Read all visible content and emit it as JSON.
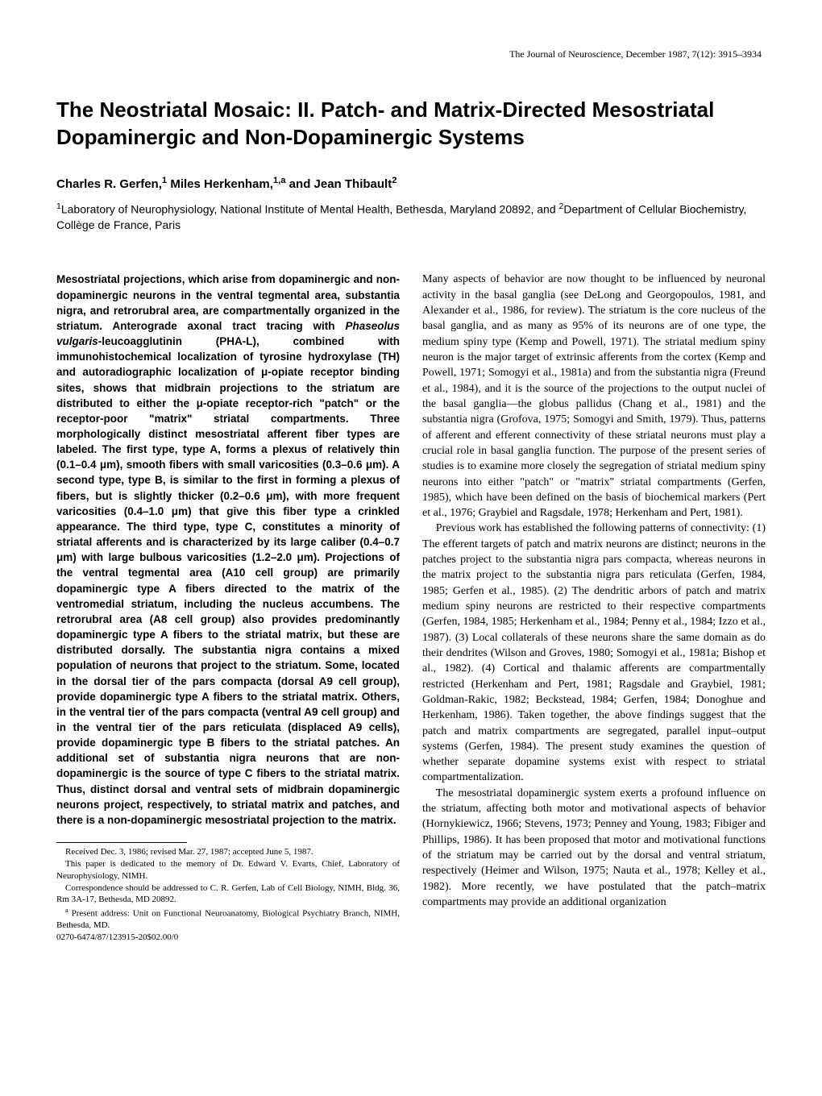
{
  "running_head": "The Journal of Neuroscience, December 1987, 7(12): 3915–3934",
  "title": "The Neostriatal Mosaic: II. Patch- and Matrix-Directed Mesostriatal Dopaminergic and Non-Dopaminergic Systems",
  "authors_html": "Charles R. Gerfen,<sup>1</sup> Miles Herkenham,<sup>1,a</sup> and Jean Thibault<sup>2</sup>",
  "affiliations_html": "<sup>1</sup>Laboratory of Neurophysiology, National Institute of Mental Health, Bethesda, Maryland 20892, and <sup>2</sup>Department of Cellular Biochemistry, Collège de France, Paris",
  "abstract_html": "Mesostriatal projections, which arise from dopaminergic and non-dopaminergic neurons in the ventral tegmental area, substantia nigra, and retrorubral area, are compartmentally organized in the striatum. Anterograde axonal tract tracing with <span class=\"ital\">Phaseolus vulgaris</span>-leucoagglutinin (PHA-L), combined with immunohistochemical localization of tyrosine hydroxylase (TH) and autoradiographic localization of μ-opiate receptor binding sites, shows that midbrain projections to the striatum are distributed to either the μ-opiate receptor-rich \"patch\" or the receptor-poor \"matrix\" striatal compartments. Three morphologically distinct mesostriatal afferent fiber types are labeled. The first type, type A, forms a plexus of relatively thin (0.1–0.4 μm), smooth fibers with small varicosities (0.3–0.6 μm). A second type, type B, is similar to the first in forming a plexus of fibers, but is slightly thicker (0.2–0.6 μm), with more frequent varicosities (0.4–1.0 μm) that give this fiber type a crinkled appearance. The third type, type C, constitutes a minority of striatal afferents and is characterized by its large caliber (0.4–0.7 μm) with large bulbous varicosities (1.2–2.0 μm). Projections of the ventral tegmental area (A10 cell group) are primarily dopaminergic type A fibers directed to the matrix of the ventromedial striatum, including the nucleus accumbens. The retrorubral area (A8 cell group) also provides predominantly dopaminergic type A fibers to the striatal matrix, but these are distributed dorsally. The substantia nigra contains a mixed population of neurons that project to the striatum. Some, located in the dorsal tier of the pars compacta (dorsal A9 cell group), provide dopaminergic type A fibers to the striatal matrix. Others, in the ventral tier of the pars compacta (ventral A9 cell group) and in the ventral tier of the pars reticulata (displaced A9 cells), provide dopaminergic type B fibers to the striatal patches. An additional set of substantia nigra neurons that are non-dopaminergic is the source of type C fibers to the striatal matrix. Thus, distinct dorsal and ventral sets of midbrain dopaminergic neurons project, respectively, to striatal matrix and patches, and there is a non-dopaminergic mesostriatal projection to the matrix.",
  "body_p1": "Many aspects of behavior are now thought to be influenced by neuronal activity in the basal ganglia (see DeLong and Georgopoulos, 1981, and Alexander et al., 1986, for review). The striatum is the core nucleus of the basal ganglia, and as many as 95% of its neurons are of one type, the medium spiny type (Kemp and Powell, 1971). The striatal medium spiny neuron is the major target of extrinsic afferents from the cortex (Kemp and Powell, 1971; Somogyi et al., 1981a) and from the substantia nigra (Freund et al., 1984), and it is the source of the projections to the output nuclei of the basal ganglia—the globus pallidus (Chang et al., 1981) and the substantia nigra (Grofova, 1975; Somogyi and Smith, 1979). Thus, patterns of afferent and efferent connectivity of these striatal neurons must play a crucial role in basal ganglia function. The purpose of the present series of studies is to examine more closely the segregation of striatal medium spiny neurons into either \"patch\" or \"matrix\" striatal compartments (Gerfen, 1985), which have been defined on the basis of biochemical markers (Pert et al., 1976; Graybiel and Ragsdale, 1978; Herkenham and Pert, 1981).",
  "body_p2": "Previous work has established the following patterns of connectivity: (1) The efferent targets of patch and matrix neurons are distinct; neurons in the patches project to the substantia nigra pars compacta, whereas neurons in the matrix project to the substantia nigra pars reticulata (Gerfen, 1984, 1985; Gerfen et al., 1985). (2) The dendritic arbors of patch and matrix medium spiny neurons are restricted to their respective compartments (Gerfen, 1984, 1985; Herkenham et al., 1984; Penny et al., 1984; Izzo et al., 1987). (3) Local collaterals of these neurons share the same domain as do their dendrites (Wilson and Groves, 1980; Somogyi et al., 1981a; Bishop et al., 1982). (4) Cortical and thalamic afferents are compartmentally restricted (Herkenham and Pert, 1981; Ragsdale and Graybiel, 1981; Goldman-Rakic, 1982; Beckstead, 1984; Gerfen, 1984; Donoghue and Herkenham, 1986). Taken together, the above findings suggest that the patch and matrix compartments are segregated, parallel input–output systems (Gerfen, 1984). The present study examines the question of whether separate dopamine systems exist with respect to striatal compartmentalization.",
  "body_p3": "The mesostriatal dopaminergic system exerts a profound influence on the striatum, affecting both motor and motivational aspects of behavior (Hornykiewicz, 1966; Stevens, 1973; Penney and Young, 1983; Fibiger and Phillips, 1986). It has been proposed that motor and motivational functions of the striatum may be carried out by the dorsal and ventral striatum, respectively (Heimer and Wilson, 1975; Nauta et al., 1978; Kelley et al., 1982). More recently, we have postulated that the patch–matrix compartments may provide an additional organization",
  "footnotes": {
    "received": "Received Dec. 3, 1986; revised Mar. 27, 1987; accepted June 5, 1987.",
    "dedication": "This paper is dedicated to the memory of Dr. Edward V. Evarts, Chief, Laboratory of Neurophysiology, NIMH.",
    "correspondence": "Correspondence should be addressed to C. R. Gerfen, Lab of Cell Biology, NIMH, Bldg. 36, Rm 3A-17, Bethesda, MD 20892.",
    "present_address_html": "<sup>a</sup> Present address: Unit on Functional Neuroanatomy, Biological Psychiatry Branch, NIMH, Bethesda, MD.",
    "copyright": "0270-6474/87/123915-20$02.00/0"
  }
}
